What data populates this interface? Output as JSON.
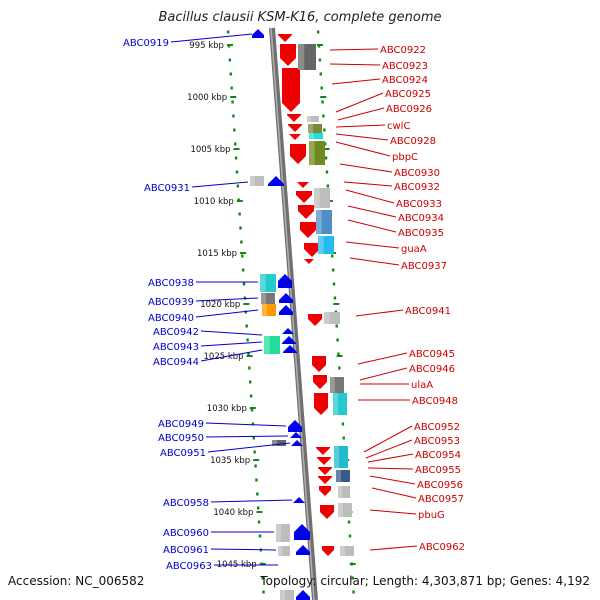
{
  "title": "Bacillus clausii KSM-K16, complete genome",
  "footer": {
    "accession": "Accession: NC_006582",
    "topology": "Topology: circular; Length: 4,303,871 bp; Genes: 4,192"
  },
  "scale_labels": [
    "995 kbp",
    "1000 kbp",
    "1005 kbp",
    "1010 kbp",
    "1015 kbp",
    "1020 kbp",
    "1025 kbp",
    "1030 kbp",
    "1035 kbp",
    "1040 kbp",
    "1045 kbp"
  ],
  "left_genes": [
    "ABC0919",
    "ABC0931",
    "ABC0938",
    "ABC0939",
    "ABC0940",
    "ABC0942",
    "ABC0943",
    "ABC0944",
    "ABC0949",
    "ABC0950",
    "ABC0951",
    "ABC0958",
    "ABC0960",
    "ABC0961",
    "ABC0963"
  ],
  "right_genes": [
    "ABC0922",
    "ABC0923",
    "ABC0924",
    "ABC0925",
    "ABC0926",
    "cwlC",
    "ABC0928",
    "pbpC",
    "ABC0930",
    "ABC0932",
    "ABC0933",
    "ABC0934",
    "ABC0935",
    "guaA",
    "ABC0937",
    "ABC0941",
    "ABC0945",
    "ABC0946",
    "ulaA",
    "ABC0948",
    "ABC0952",
    "ABC0953",
    "ABC0954",
    "ABC0955",
    "ABC0956",
    "ABC0957",
    "pbuG",
    "ABC0962"
  ],
  "colors": {
    "forward_label": "#0000cc",
    "reverse_label": "#cc0000",
    "forward_gene": "#0000ee",
    "reverse_gene": "#ee0000",
    "dotted_track": "#118811",
    "backbone": "#888888"
  }
}
